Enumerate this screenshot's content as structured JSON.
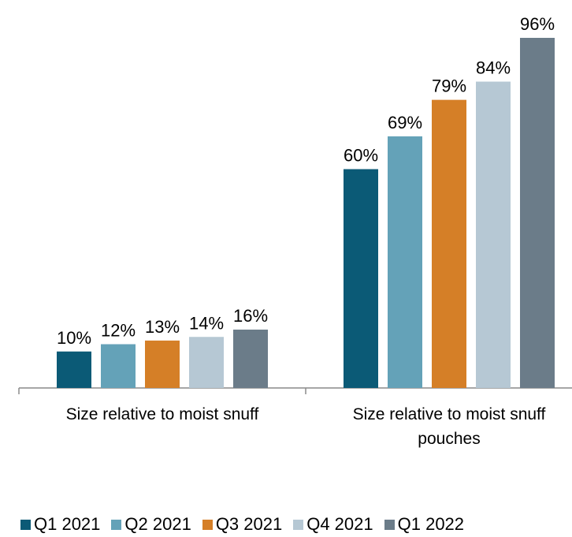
{
  "chart_data": {
    "type": "bar",
    "categories": [
      "Size relative to moist snuff",
      "Size relative to moist snuff pouches"
    ],
    "category_lines": [
      [
        "Size relative to moist snuff"
      ],
      [
        "Size relative to moist snuff",
        "pouches"
      ]
    ],
    "series": [
      {
        "name": "Q1 2021",
        "color": "#0b5a76",
        "values": [
          10,
          60
        ],
        "labels": [
          "10%",
          "60%"
        ]
      },
      {
        "name": "Q2 2021",
        "color": "#64a2b8",
        "values": [
          12,
          69
        ],
        "labels": [
          "12%",
          "69%"
        ]
      },
      {
        "name": "Q3 2021",
        "color": "#d57f27",
        "values": [
          13,
          79
        ],
        "labels": [
          "13%",
          "79%"
        ]
      },
      {
        "name": "Q4 2021",
        "color": "#b6c8d4",
        "values": [
          14,
          84
        ],
        "labels": [
          "14%",
          "84%"
        ]
      },
      {
        "name": "Q1 2022",
        "color": "#6b7c89",
        "values": [
          16,
          96
        ],
        "labels": [
          "16%",
          "96%"
        ]
      }
    ],
    "ylim": [
      0,
      96
    ],
    "legend_position": "bottom",
    "grid": false
  }
}
